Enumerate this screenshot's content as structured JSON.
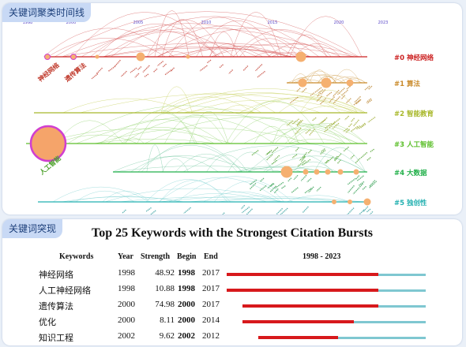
{
  "panels": {
    "timeline_label": "关键词聚类时间线",
    "bursts_label": "关键词突现"
  },
  "timeline": {
    "years": [
      "1998",
      "2000",
      "2005",
      "2010",
      "2015",
      "2020",
      "2023"
    ],
    "clusters": [
      {
        "id": "#0 神经网络",
        "color": "#cc2222"
      },
      {
        "id": "#1 算法",
        "color": "#c98a2a"
      },
      {
        "id": "#2 智能教育",
        "color": "#a8b82a"
      },
      {
        "id": "#3 人工智能",
        "color": "#5cbf2a"
      },
      {
        "id": "#4 大数据",
        "color": "#22b04a"
      },
      {
        "id": "#5 独创性",
        "color": "#22b0b0"
      }
    ],
    "node_labels": [
      "神经网络",
      "遗传算法",
      "人工智能"
    ]
  },
  "bursts": {
    "title": "Top 25 Keywords with the Strongest Citation Bursts",
    "headers": {
      "keywords": "Keywords",
      "year": "Year",
      "strength": "Strength",
      "begin": "Begin",
      "end": "End",
      "range": "1998 - 2023"
    },
    "range_start": 1998,
    "range_end": 2023,
    "rows": [
      {
        "keyword": "神经网络",
        "year": "1998",
        "strength": "48.92",
        "begin": "1998",
        "end": "2017"
      },
      {
        "keyword": "人工神经网络",
        "year": "1998",
        "strength": "10.88",
        "begin": "1998",
        "end": "2017"
      },
      {
        "keyword": "遗传算法",
        "year": "2000",
        "strength": "74.98",
        "begin": "2000",
        "end": "2017"
      },
      {
        "keyword": "优化",
        "year": "2000",
        "strength": "8.11",
        "begin": "2000",
        "end": "2014"
      },
      {
        "keyword": "知识工程",
        "year": "2002",
        "strength": "9.62",
        "begin": "2002",
        "end": "2012"
      }
    ]
  }
}
